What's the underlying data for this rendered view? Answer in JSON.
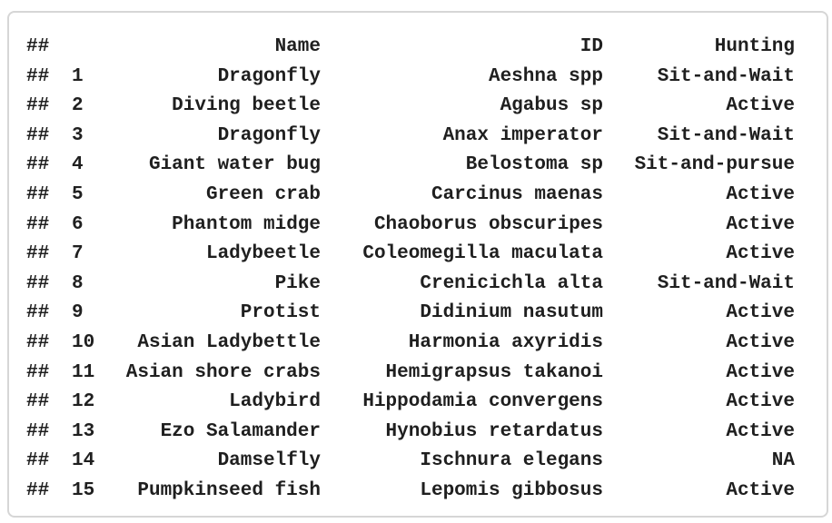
{
  "output": {
    "prefix": "##",
    "headers": {
      "name": "Name",
      "id": "ID",
      "hunting": "Hunting"
    },
    "rows": [
      {
        "index": "1",
        "name": "Dragonfly",
        "id": "Aeshna spp",
        "hunting": "Sit-and-Wait"
      },
      {
        "index": "2",
        "name": "Diving beetle",
        "id": "Agabus sp",
        "hunting": "Active"
      },
      {
        "index": "3",
        "name": "Dragonfly",
        "id": "Anax imperator",
        "hunting": "Sit-and-Wait"
      },
      {
        "index": "4",
        "name": "Giant water bug",
        "id": "Belostoma sp",
        "hunting": "Sit-and-pursue"
      },
      {
        "index": "5",
        "name": "Green crab",
        "id": "Carcinus maenas",
        "hunting": "Active"
      },
      {
        "index": "6",
        "name": "Phantom midge",
        "id": "Chaoborus obscuripes",
        "hunting": "Active"
      },
      {
        "index": "7",
        "name": "Ladybeetle",
        "id": "Coleomegilla maculata",
        "hunting": "Active"
      },
      {
        "index": "8",
        "name": "Pike",
        "id": "Crenicichla alta",
        "hunting": "Sit-and-Wait"
      },
      {
        "index": "9",
        "name": "Protist",
        "id": "Didinium nasutum",
        "hunting": "Active"
      },
      {
        "index": "10",
        "name": "Asian Ladybettle",
        "id": "Harmonia axyridis",
        "hunting": "Active"
      },
      {
        "index": "11",
        "name": "Asian shore crabs",
        "id": "Hemigrapsus takanoi",
        "hunting": "Active"
      },
      {
        "index": "12",
        "name": "Ladybird",
        "id": "Hippodamia convergens",
        "hunting": "Active"
      },
      {
        "index": "13",
        "name": "Ezo Salamander",
        "id": "Hynobius retardatus",
        "hunting": "Active"
      },
      {
        "index": "14",
        "name": "Damselfly",
        "id": "Ischnura elegans",
        "hunting": "NA"
      },
      {
        "index": "15",
        "name": "Pumpkinseed fish",
        "id": "Lepomis gibbosus",
        "hunting": "Active"
      }
    ]
  }
}
